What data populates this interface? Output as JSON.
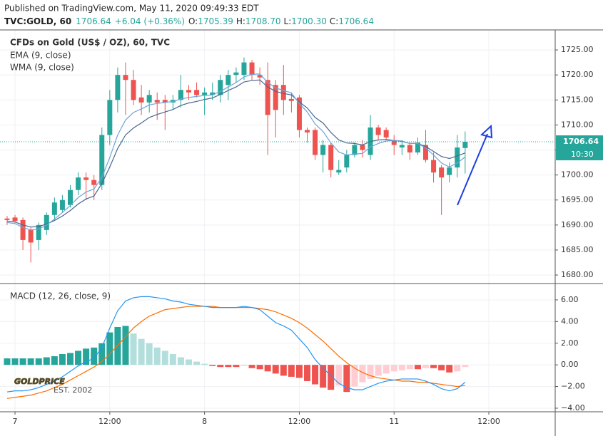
{
  "header": {
    "published": "Published on TradingView.com, May 11, 2020 09:49:33 EDT",
    "symbol": "TVC:GOLD, 60",
    "last": "1706.64",
    "change": "+6.04 (+0.36%)",
    "ohlc": [
      {
        "label": "O:",
        "value": "1705.39"
      },
      {
        "label": "H:",
        "value": "1708.70"
      },
      {
        "label": "L:",
        "value": "1700.30"
      },
      {
        "label": "C:",
        "value": "1706.64"
      }
    ]
  },
  "watermark": {
    "brand": "GOLDPRICE",
    "est": "EST. 2002"
  },
  "chart_data": [
    {
      "type": "candlestick",
      "title": "CFDs on Gold (US$ / OZ), 60, TVC",
      "xlim": [
        -0.9,
        69.4
      ],
      "ylim": [
        1678.3,
        1729.0
      ],
      "yticks": [
        {
          "value": 1680,
          "label": "1680.00"
        },
        {
          "value": 1685,
          "label": "1685.00"
        },
        {
          "value": 1690,
          "label": "1690.00"
        },
        {
          "value": 1695,
          "label": "1695.00"
        },
        {
          "value": 1700,
          "label": "1700.00"
        },
        {
          "value": 1705,
          "label": "1705.00"
        },
        {
          "value": 1710,
          "label": "1710.00"
        },
        {
          "value": 1715,
          "label": "1715.00"
        },
        {
          "value": 1720,
          "label": "1720.00"
        },
        {
          "value": 1725,
          "label": "1725.00"
        }
      ],
      "grid": true,
      "up_color": "#26a69a",
      "down_color": "#ef5350",
      "open": [
        1691.3,
        1691.5,
        1691.0,
        1689.0,
        1687.0,
        1689.0,
        1692.0,
        1693.0,
        1694.0,
        1697.0,
        1699.5,
        1699.0,
        1698.0,
        1708.0,
        1715.0,
        1720.0,
        1719.0,
        1715.5,
        1714.5,
        1715.0,
        1715.0,
        1714.5,
        1715.0,
        1717.0,
        1717.0,
        1716.0,
        1716.0,
        1716.0,
        1718.0,
        1720.0,
        1720.0,
        1722.5,
        1720.0,
        1719.0,
        1718.0,
        1718.0,
        1715.2,
        1715.5,
        1709.0,
        1709.0,
        1704.0,
        1706.0,
        1700.5,
        1701.5,
        1704.0,
        1706.0,
        1704.0,
        1709.5,
        1709.0,
        1707.0,
        1705.5,
        1706.0,
        1704.5,
        1706.0,
        1703.0,
        1701.5,
        1700.0,
        1701.5,
        1705.39
      ],
      "high": [
        1691.8,
        1692.0,
        1691.5,
        1689.5,
        1690.5,
        1692.5,
        1695.5,
        1696.0,
        1698.0,
        1700.5,
        1700.5,
        1700.0,
        1709.5,
        1717.0,
        1721.5,
        1722.5,
        1721.0,
        1718.0,
        1717.0,
        1716.5,
        1716.0,
        1716.0,
        1720.0,
        1718.0,
        1718.5,
        1717.5,
        1718.5,
        1720.0,
        1721.0,
        1721.5,
        1723.5,
        1723.0,
        1721.5,
        1722.5,
        1719.0,
        1722.0,
        1716.5,
        1716.0,
        1709.5,
        1709.5,
        1707.0,
        1706.5,
        1703.0,
        1705.0,
        1706.5,
        1707.0,
        1712.0,
        1710.0,
        1709.5,
        1708.0,
        1707.0,
        1706.5,
        1707.5,
        1709.0,
        1704.5,
        1702.0,
        1702.5,
        1708.0,
        1708.7
      ],
      "low": [
        1690.0,
        1690.5,
        1685.0,
        1682.5,
        1685.0,
        1688.0,
        1691.0,
        1692.5,
        1693.5,
        1696.0,
        1695.0,
        1695.0,
        1697.0,
        1706.0,
        1712.5,
        1712.0,
        1714.0,
        1712.0,
        1712.5,
        1711.0,
        1709.0,
        1713.0,
        1713.5,
        1715.0,
        1715.5,
        1712.0,
        1715.0,
        1714.5,
        1715.0,
        1718.5,
        1719.0,
        1719.0,
        1718.0,
        1704.0,
        1707.5,
        1712.0,
        1712.5,
        1707.5,
        1706.5,
        1703.0,
        1700.5,
        1699.5,
        1700.0,
        1700.5,
        1703.5,
        1703.5,
        1703.0,
        1707.0,
        1707.0,
        1704.0,
        1704.0,
        1703.0,
        1704.0,
        1702.5,
        1698.5,
        1692.0,
        1698.5,
        1699.5,
        1700.3
      ],
      "close": [
        1691.0,
        1690.8,
        1687.0,
        1686.5,
        1690.0,
        1692.0,
        1694.5,
        1695.0,
        1697.0,
        1699.5,
        1699.0,
        1698.0,
        1708.0,
        1715.0,
        1720.0,
        1719.0,
        1715.0,
        1714.5,
        1716.0,
        1714.5,
        1714.5,
        1715.0,
        1717.0,
        1716.5,
        1716.0,
        1716.5,
        1716.5,
        1719.0,
        1720.0,
        1720.5,
        1722.5,
        1720.0,
        1719.5,
        1712.0,
        1713.0,
        1715.0,
        1714.8,
        1709.0,
        1708.5,
        1704.0,
        1706.0,
        1701.0,
        1701.0,
        1704.0,
        1706.0,
        1705.0,
        1709.5,
        1708.0,
        1707.5,
        1706.0,
        1706.0,
        1704.5,
        1706.5,
        1703.0,
        1700.5,
        1699.5,
        1701.5,
        1705.5,
        1706.64
      ],
      "series": [
        {
          "name": "EMA (9, close)",
          "color": "#4a6890",
          "values": [
            1690.8,
            1690.6,
            1690.0,
            1689.6,
            1689.7,
            1690.2,
            1690.9,
            1691.8,
            1692.9,
            1694.2,
            1695.2,
            1695.8,
            1698.3,
            1701.6,
            1705.3,
            1708.0,
            1709.4,
            1710.4,
            1711.5,
            1712.1,
            1712.6,
            1713.1,
            1713.9,
            1714.4,
            1714.7,
            1715.1,
            1715.4,
            1716.1,
            1716.9,
            1717.6,
            1718.6,
            1718.9,
            1719.0,
            1717.6,
            1716.7,
            1716.3,
            1716.0,
            1714.6,
            1713.4,
            1711.5,
            1710.4,
            1708.5,
            1707.0,
            1706.4,
            1706.3,
            1706.0,
            1706.7,
            1707.0,
            1707.1,
            1706.9,
            1706.7,
            1706.3,
            1706.3,
            1705.7,
            1704.7,
            1703.7,
            1703.3,
            1703.8,
            1704.4
          ]
        },
        {
          "name": "WMA (9, close)",
          "color": "#6fa3d8",
          "values": [
            1690.5,
            1690.3,
            1689.5,
            1689.0,
            1689.2,
            1690.0,
            1691.2,
            1692.5,
            1693.9,
            1695.5,
            1696.6,
            1697.2,
            1699.5,
            1703.5,
            1708.0,
            1711.0,
            1712.5,
            1713.2,
            1714.0,
            1714.3,
            1714.5,
            1714.7,
            1715.2,
            1715.5,
            1715.7,
            1715.9,
            1716.0,
            1716.7,
            1717.6,
            1718.5,
            1719.6,
            1720.1,
            1720.2,
            1718.5,
            1717.4,
            1716.9,
            1716.4,
            1714.3,
            1712.6,
            1710.2,
            1708.7,
            1706.4,
            1704.6,
            1704.0,
            1704.2,
            1704.3,
            1705.6,
            1706.3,
            1706.8,
            1706.9,
            1706.8,
            1706.3,
            1706.3,
            1705.4,
            1704.0,
            1702.4,
            1701.6,
            1702.4,
            1703.6
          ]
        }
      ],
      "last_price": {
        "value": 1706.64,
        "label": "1706.64",
        "color": "#26a69a"
      },
      "countdown": "10:30"
    },
    {
      "type": "macd",
      "title": "MACD (12, 26, close, 9)",
      "xlim": [
        -0.9,
        69.4
      ],
      "ylim": [
        -4.33,
        7.51
      ],
      "yticks": [
        {
          "value": 6,
          "label": "6.00"
        },
        {
          "value": 4,
          "label": "4.00"
        },
        {
          "value": 2,
          "label": "2.00"
        },
        {
          "value": 0,
          "label": "0.00"
        },
        {
          "value": -2,
          "label": "−2.00"
        },
        {
          "value": -4,
          "label": "−4.00"
        }
      ],
      "xticks": [
        {
          "value": 1,
          "label": "7"
        },
        {
          "value": 13,
          "label": "12:00"
        },
        {
          "value": 25,
          "label": "8"
        },
        {
          "value": 37,
          "label": "12:00"
        },
        {
          "value": 49,
          "label": "11"
        },
        {
          "value": 61,
          "label": "12:00"
        }
      ],
      "grid": true,
      "histogram": {
        "colors": [
          "#26a69a",
          "#b2dfdb",
          "#ef5350",
          "#ffcdd2"
        ],
        "values": [
          0.6,
          0.6,
          0.6,
          0.6,
          0.6,
          0.7,
          0.8,
          1.0,
          1.1,
          1.3,
          1.5,
          1.6,
          2.0,
          3.0,
          3.5,
          3.6,
          2.9,
          2.4,
          2.0,
          1.6,
          1.3,
          1.0,
          0.7,
          0.5,
          0.3,
          0.1,
          -0.1,
          -0.2,
          -0.2,
          -0.2,
          -0.1,
          -0.3,
          -0.4,
          -0.6,
          -0.8,
          -1.0,
          -1.1,
          -1.2,
          -1.5,
          -1.8,
          -2.1,
          -2.3,
          -1.9,
          -2.5,
          -2.0,
          -1.6,
          -1.3,
          -1.0,
          -0.8,
          -0.6,
          -0.5,
          -0.4,
          -0.4,
          -0.3,
          -0.3,
          -0.5,
          -0.7,
          -0.6,
          -0.2
        ]
      },
      "macd": {
        "color": "#2196f3",
        "values": [
          -2.5,
          -2.4,
          -2.4,
          -2.3,
          -2.1,
          -1.8,
          -1.5,
          -1.1,
          -0.6,
          -0.1,
          0.3,
          0.6,
          1.6,
          3.4,
          5.0,
          5.9,
          6.2,
          6.3,
          6.3,
          6.2,
          6.1,
          5.9,
          5.8,
          5.6,
          5.5,
          5.4,
          5.3,
          5.3,
          5.3,
          5.3,
          5.4,
          5.3,
          5.1,
          4.5,
          3.9,
          3.6,
          3.2,
          2.4,
          1.6,
          0.5,
          -0.3,
          -1.0,
          -1.7,
          -2.1,
          -2.3,
          -2.3,
          -2.0,
          -1.7,
          -1.5,
          -1.4,
          -1.3,
          -1.3,
          -1.3,
          -1.5,
          -1.8,
          -2.2,
          -2.4,
          -2.2,
          -1.6
        ]
      },
      "signal": {
        "color": "#ff6d00",
        "values": [
          -3.1,
          -3.0,
          -2.9,
          -2.8,
          -2.6,
          -2.4,
          -2.1,
          -1.8,
          -1.4,
          -1.0,
          -0.6,
          -0.2,
          0.3,
          1.0,
          1.8,
          2.6,
          3.4,
          4.0,
          4.5,
          4.8,
          5.1,
          5.2,
          5.3,
          5.4,
          5.4,
          5.4,
          5.4,
          5.3,
          5.3,
          5.3,
          5.3,
          5.3,
          5.2,
          5.1,
          4.9,
          4.6,
          4.3,
          3.9,
          3.4,
          2.8,
          2.2,
          1.5,
          0.8,
          0.2,
          -0.3,
          -0.7,
          -1.0,
          -1.2,
          -1.3,
          -1.4,
          -1.5,
          -1.5,
          -1.6,
          -1.6,
          -1.7,
          -1.8,
          -1.9,
          -2.0,
          -1.9
        ]
      }
    }
  ]
}
